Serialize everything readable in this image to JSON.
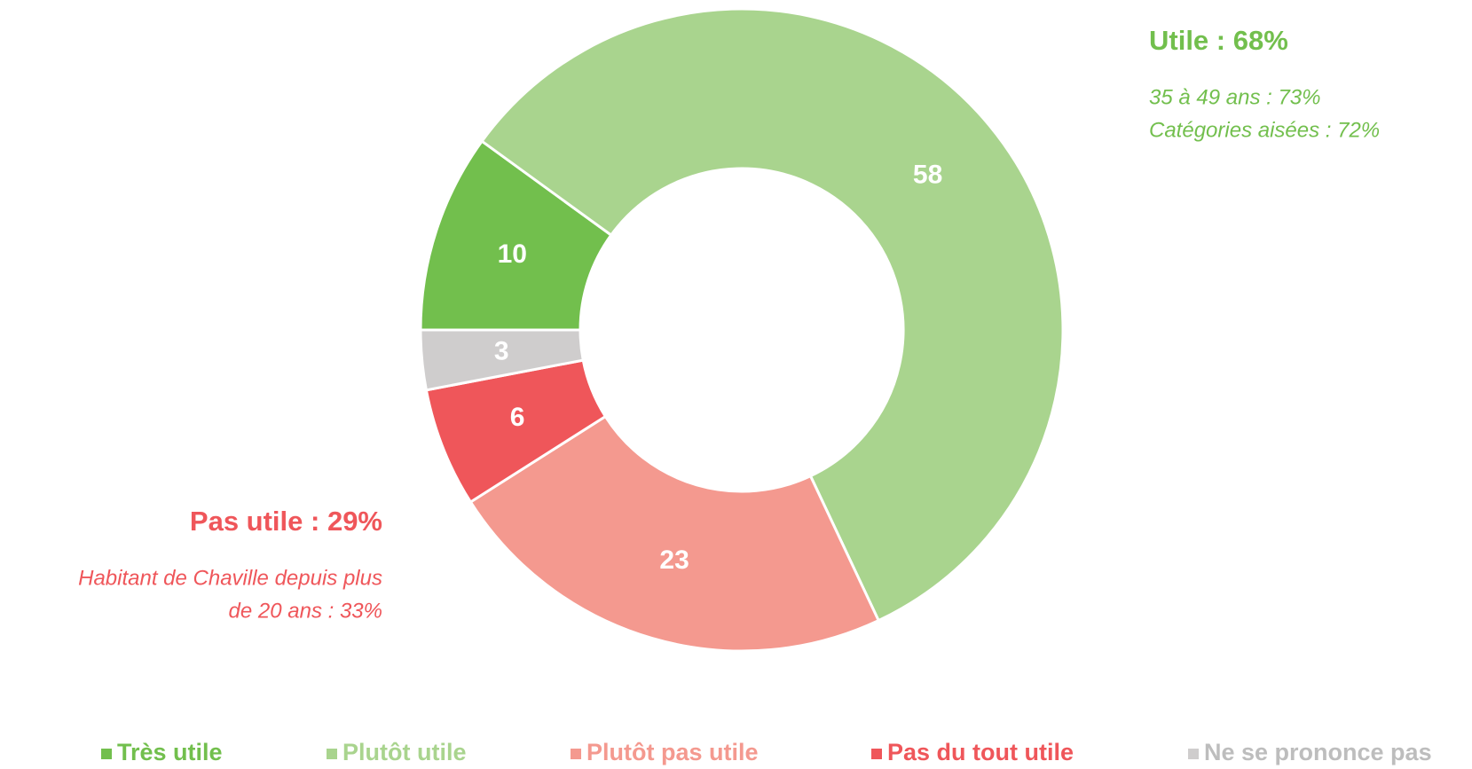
{
  "chart_data": {
    "type": "donut",
    "categories": [
      "Très utile",
      "Plutôt utile",
      "Plutôt pas utile",
      "Pas du tout utile",
      "Ne se prononce pas"
    ],
    "values": [
      10,
      58,
      23,
      6,
      3
    ],
    "colors": [
      "#72bf4d",
      "#a9d48e",
      "#f4998f",
      "#ef565a",
      "#cfcdcd"
    ],
    "legend_text_colors": [
      "#72bf4d",
      "#a9d48e",
      "#f4998f",
      "#ef565a",
      "#bdbdbd"
    ],
    "legend": "bottom",
    "annotations": [
      {
        "text": "Utile : 68%",
        "color": "#72bf4d",
        "lines": [
          "35 à 49 ans : 73%",
          "Catégories aisées : 72%"
        ]
      },
      {
        "text": "Pas utile : 29%",
        "color": "#ef565a",
        "lines": [
          "Habitant de Chaville depuis plus",
          "de 20 ans : 33%"
        ]
      }
    ]
  }
}
